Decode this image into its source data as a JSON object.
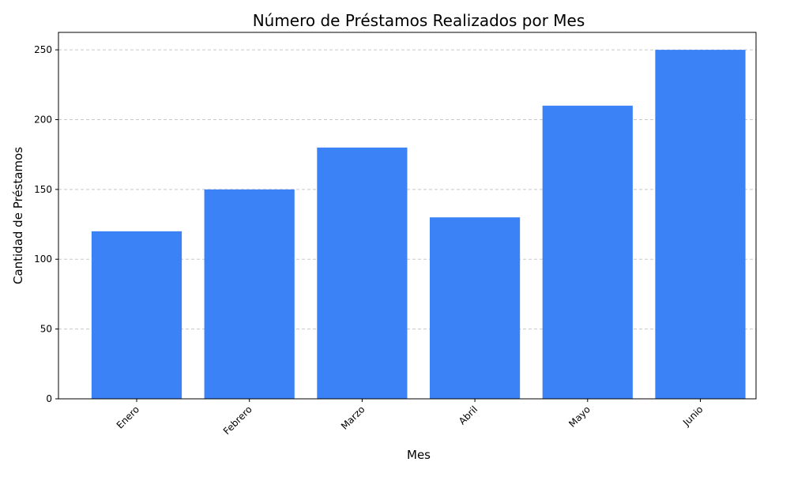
{
  "chart_data": {
    "type": "bar",
    "title": "Número de Préstamos Realizados por Mes",
    "xlabel": "Mes",
    "ylabel": "Cantidad de Préstamos",
    "categories": [
      "Enero",
      "Febrero",
      "Marzo",
      "Abril",
      "Mayo",
      "Junio"
    ],
    "values": [
      120,
      150,
      180,
      130,
      210,
      250
    ],
    "ylim": [
      0,
      262.5
    ],
    "yticks": [
      0,
      50,
      100,
      150,
      200,
      250
    ],
    "grid": "y-dashed",
    "bar_color": "#3b82f6",
    "grid_color": "#c8c8c8"
  }
}
